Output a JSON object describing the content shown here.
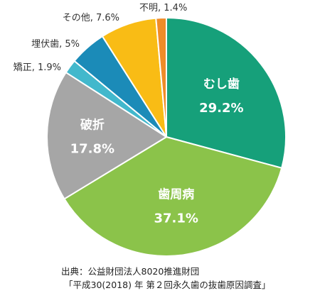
{
  "chart_data": {
    "type": "pie",
    "title": "",
    "start_angle_deg": 0,
    "direction": "clockwise",
    "slices": [
      {
        "label": "むし歯",
        "value": 29.2,
        "value_text": "29.2%",
        "color": "#16a07a",
        "label_position": "inside",
        "label_color": "#ffffff"
      },
      {
        "label": "歯周病",
        "value": 37.1,
        "value_text": "37.1%",
        "color": "#8bc34a",
        "label_position": "inside",
        "label_color": "#ffffff"
      },
      {
        "label": "破折",
        "value": 17.8,
        "value_text": "17.8%",
        "color": "#a6a6a6",
        "label_position": "inside",
        "label_color": "#ffffff"
      },
      {
        "label": "矯正",
        "value": 1.9,
        "value_text": "1.9%",
        "color": "#42b8cc",
        "label_position": "outside",
        "label_color": "#333333"
      },
      {
        "label": "埋伏歯",
        "value": 5.0,
        "value_text": "5%",
        "color": "#1b8bb8",
        "label_position": "outside",
        "label_color": "#333333"
      },
      {
        "label": "その他",
        "value": 7.6,
        "value_text": "7.6%",
        "color": "#f9bc15",
        "label_position": "outside",
        "label_color": "#333333"
      },
      {
        "label": "不明",
        "value": 1.4,
        "value_text": "1.4%",
        "color": "#f08c28",
        "label_position": "outside",
        "label_color": "#333333"
      }
    ]
  },
  "source": {
    "line1": "出典：公益財団法人8020推進財団",
    "line2": "「平成30(2018) 年 第２回永久歯の抜歯原因調査」"
  }
}
